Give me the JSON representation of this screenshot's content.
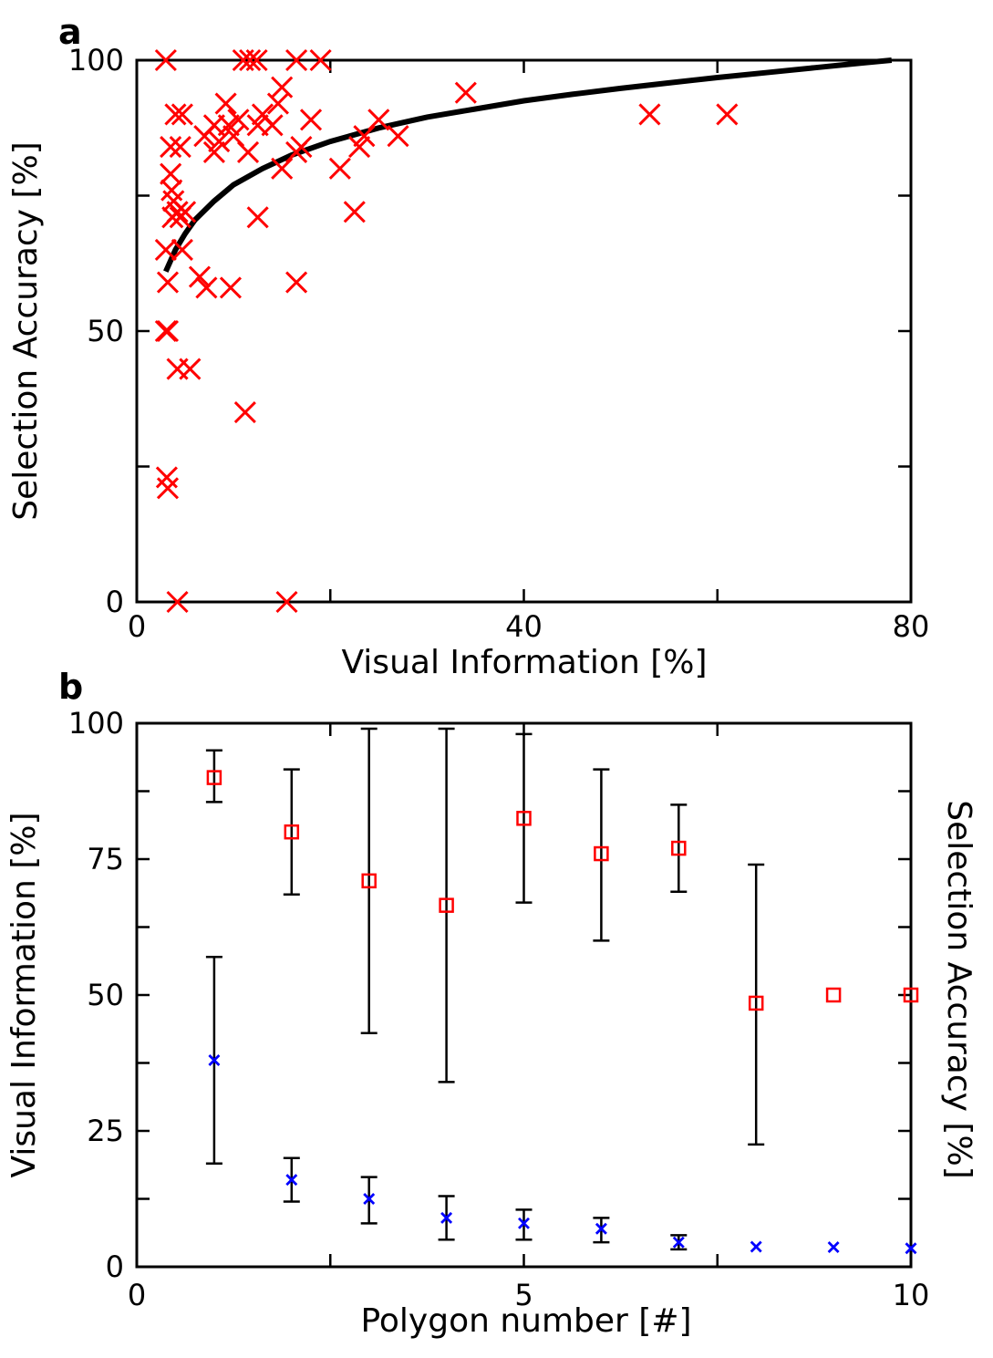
{
  "chart_data": [
    {
      "id": "a",
      "panel_label": "a",
      "type": "scatter",
      "xlabel": "Visual Information [%]",
      "ylabel": "Selection Accuracy [%]",
      "xlim": [
        0,
        80
      ],
      "ylim": [
        0,
        100
      ],
      "xticks": [
        "0",
        "40",
        "80"
      ],
      "yticks": [
        "0",
        "50",
        "100"
      ],
      "points_color": "#ff0000",
      "curve_color": "#000000",
      "points": [
        [
          3,
          100
        ],
        [
          11,
          100
        ],
        [
          11.7,
          100
        ],
        [
          12.4,
          100
        ],
        [
          16.5,
          100
        ],
        [
          19,
          100
        ],
        [
          34,
          94
        ],
        [
          53,
          90
        ],
        [
          61,
          90
        ],
        [
          4,
          90
        ],
        [
          4.7,
          90
        ],
        [
          9.2,
          92
        ],
        [
          14.6,
          92
        ],
        [
          15,
          95
        ],
        [
          13,
          90
        ],
        [
          8,
          88
        ],
        [
          9.5,
          88
        ],
        [
          10.5,
          89
        ],
        [
          7,
          86
        ],
        [
          8.5,
          85
        ],
        [
          10,
          86
        ],
        [
          12.5,
          88
        ],
        [
          14,
          88
        ],
        [
          18,
          89
        ],
        [
          25,
          89
        ],
        [
          27,
          86
        ],
        [
          23.5,
          86
        ],
        [
          3.5,
          84
        ],
        [
          4.5,
          84
        ],
        [
          8,
          83
        ],
        [
          11.5,
          83
        ],
        [
          16.5,
          83
        ],
        [
          17,
          84
        ],
        [
          23,
          84
        ],
        [
          15,
          80
        ],
        [
          21,
          80
        ],
        [
          3.5,
          79
        ],
        [
          3.6,
          76
        ],
        [
          3.8,
          74
        ],
        [
          4.2,
          72
        ],
        [
          3.7,
          71
        ],
        [
          4.5,
          71
        ],
        [
          5,
          72
        ],
        [
          12.5,
          71
        ],
        [
          22.5,
          72
        ],
        [
          3,
          65
        ],
        [
          4.7,
          65
        ],
        [
          6.5,
          60
        ],
        [
          7.2,
          58
        ],
        [
          9.7,
          58
        ],
        [
          3.2,
          59
        ],
        [
          16.5,
          59
        ],
        [
          3,
          50
        ],
        [
          3.2,
          50
        ],
        [
          4.2,
          43
        ],
        [
          5.5,
          43
        ],
        [
          11.2,
          35
        ],
        [
          3.1,
          23
        ],
        [
          3.2,
          21
        ],
        [
          4.2,
          0
        ],
        [
          15.5,
          0
        ]
      ],
      "curve": [
        [
          3,
          61
        ],
        [
          3.5,
          63
        ],
        [
          4,
          65
        ],
        [
          5,
          68
        ],
        [
          6,
          70.5
        ],
        [
          8,
          74
        ],
        [
          10,
          77
        ],
        [
          13,
          80
        ],
        [
          16,
          82.5
        ],
        [
          20,
          85
        ],
        [
          25,
          87.5
        ],
        [
          30,
          89.5
        ],
        [
          35,
          91
        ],
        [
          40,
          92.5
        ],
        [
          45,
          93.7
        ],
        [
          50,
          94.8
        ],
        [
          55,
          95.8
        ],
        [
          60,
          96.8
        ],
        [
          65,
          97.7
        ],
        [
          70,
          98.6
        ],
        [
          75,
          99.5
        ],
        [
          78,
          100
        ]
      ]
    },
    {
      "id": "b",
      "panel_label": "b",
      "type": "scatter",
      "xlabel": "Polygon number [#]",
      "ylabel": "Visual Information [%]",
      "ylabel_right": "Selection Accuracy [%]",
      "xlim": [
        0,
        10
      ],
      "ylim": [
        0,
        100
      ],
      "xticks": [
        "0",
        "5",
        "10"
      ],
      "yticks": [
        "0",
        "25",
        "50",
        "75",
        "100"
      ],
      "x": [
        1,
        2,
        3,
        4,
        5,
        6,
        7,
        8,
        9,
        10
      ],
      "series": [
        {
          "name": "Selection Accuracy",
          "marker": "square",
          "color": "#ff0000",
          "values": [
            90,
            80,
            71,
            66.5,
            82.5,
            76,
            77,
            48.5,
            50,
            50
          ],
          "err_low": [
            85.5,
            68.5,
            43,
            34,
            67,
            60,
            69,
            22.5,
            null,
            null
          ],
          "err_high": [
            95,
            91.5,
            99,
            99,
            98,
            91.5,
            85,
            74,
            null,
            null
          ]
        },
        {
          "name": "Visual Information",
          "marker": "x",
          "color": "#0000ff",
          "values": [
            38,
            16,
            12.5,
            9,
            8,
            7,
            4.5,
            3.7,
            3.6,
            3.4
          ],
          "err_low": [
            19,
            12,
            8,
            5,
            5,
            4.5,
            3.2,
            null,
            null,
            null
          ],
          "err_high": [
            57,
            20,
            16.5,
            13,
            10.5,
            9,
            5.8,
            null,
            null,
            null
          ]
        }
      ]
    }
  ]
}
